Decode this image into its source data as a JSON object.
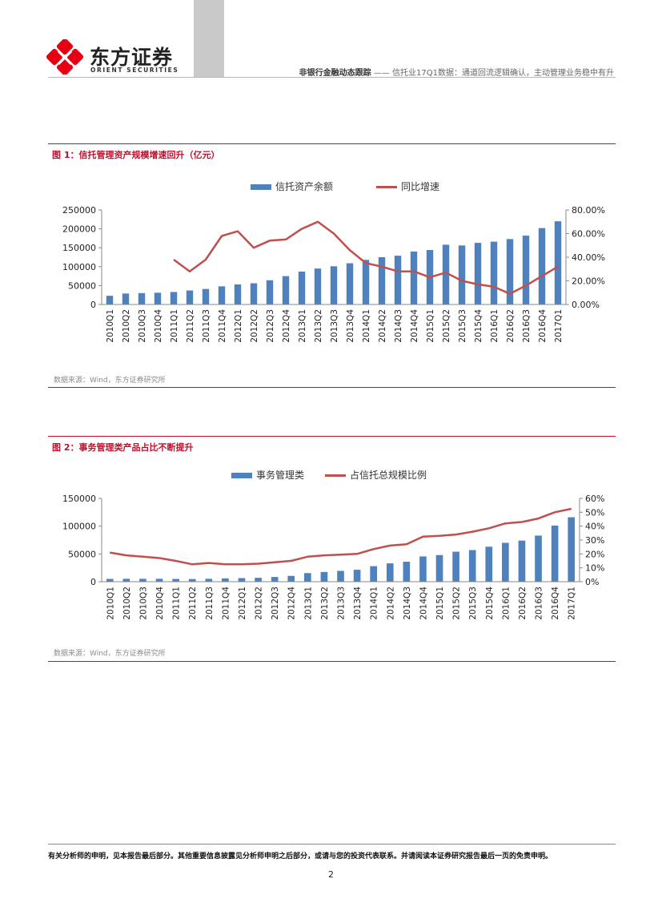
{
  "header": {
    "logo_cn": "东方证券",
    "logo_en": "ORIENT SECURITIES",
    "section": "非银行金融动态跟踪",
    "separator": "——",
    "subtitle": "信托业17Q1数据：通道回流逻辑确认，主动管理业务稳中有升"
  },
  "figures": [
    {
      "title": "图 1：信托管理资产规模增速回升（亿元）",
      "source": "数据来源：Wind，东方证券研究所"
    },
    {
      "title": "图 2：事务管理类产品占比不断提升",
      "source": "数据来源：Wind，东方证券研究所"
    }
  ],
  "footer": {
    "disclaimer": "有关分析师的申明，见本报告最后部分。其他重要信息披露见分析师申明之后部分，或请与您的投资代表联系。并请阅读本证券研究报告最后一页的免责申明。",
    "page": "2"
  },
  "colors": {
    "bar": "#4f81bd",
    "line": "#c0504d",
    "accent": "#c0102e"
  },
  "chart_data": [
    {
      "type": "bar",
      "categories": [
        "2010Q1",
        "2010Q2",
        "2010Q3",
        "2010Q4",
        "2011Q1",
        "2011Q2",
        "2011Q3",
        "2011Q4",
        "2012Q1",
        "2012Q2",
        "2012Q3",
        "2012Q4",
        "2013Q1",
        "2013Q2",
        "2013Q3",
        "2013Q4",
        "2014Q1",
        "2014Q2",
        "2014Q3",
        "2014Q4",
        "2015Q1",
        "2015Q2",
        "2015Q3",
        "2015Q4",
        "2016Q1",
        "2016Q2",
        "2016Q3",
        "2016Q4",
        "2017Q1"
      ],
      "series": [
        {
          "name": "信托资产余额",
          "type": "bar",
          "axis": "left",
          "values": [
            23000,
            29000,
            30000,
            31000,
            33000,
            37000,
            41000,
            48000,
            53000,
            56000,
            64000,
            75000,
            87000,
            95000,
            101000,
            109000,
            118000,
            125000,
            129000,
            140000,
            144000,
            158000,
            156000,
            163000,
            166000,
            173000,
            182000,
            202000,
            220000
          ]
        },
        {
          "name": "同比增速",
          "type": "line",
          "axis": "right",
          "values": [
            null,
            null,
            null,
            null,
            0.38,
            0.28,
            0.38,
            0.58,
            0.62,
            0.48,
            0.54,
            0.55,
            0.64,
            0.7,
            0.6,
            0.46,
            0.35,
            0.32,
            0.28,
            0.28,
            0.23,
            0.27,
            0.2,
            0.17,
            0.15,
            0.09,
            0.16,
            0.24,
            0.32
          ]
        }
      ],
      "yticks_left": [
        "0",
        "50000",
        "100000",
        "150000",
        "200000",
        "250000"
      ],
      "ylim_left": [
        0,
        250000
      ],
      "yticks_right": [
        "0.00%",
        "20.00%",
        "40.00%",
        "60.00%",
        "80.00%"
      ],
      "ylim_right": [
        0,
        0.8
      ],
      "legend": "top-center",
      "grid": false
    },
    {
      "type": "bar",
      "categories": [
        "2010Q1",
        "2010Q2",
        "2010Q3",
        "2010Q4",
        "2011Q1",
        "2011Q2",
        "2011Q3",
        "2011Q4",
        "2012Q1",
        "2012Q2",
        "2012Q3",
        "2012Q4",
        "2013Q1",
        "2013Q2",
        "2013Q3",
        "2013Q4",
        "2014Q1",
        "2014Q2",
        "2014Q3",
        "2014Q4",
        "2015Q1",
        "2015Q2",
        "2015Q3",
        "2015Q4",
        "2016Q1",
        "2016Q2",
        "2016Q3",
        "2016Q4",
        "2017Q1"
      ],
      "series": [
        {
          "name": "事务管理类",
          "type": "bar",
          "axis": "left",
          "values": [
            5000,
            5200,
            5200,
            5200,
            5000,
            4800,
            5200,
            6000,
            6500,
            7000,
            8500,
            10500,
            15500,
            17500,
            19500,
            21500,
            28000,
            33000,
            36000,
            45500,
            48000,
            54000,
            57000,
            63000,
            70000,
            74000,
            83000,
            101000,
            116000
          ]
        },
        {
          "name": "占信托总规模比例",
          "type": "line",
          "axis": "right",
          "values": [
            0.21,
            0.19,
            0.18,
            0.17,
            0.15,
            0.125,
            0.135,
            0.125,
            0.125,
            0.13,
            0.14,
            0.15,
            0.18,
            0.19,
            0.195,
            0.2,
            0.235,
            0.26,
            0.27,
            0.325,
            0.33,
            0.34,
            0.36,
            0.385,
            0.42,
            0.43,
            0.455,
            0.5,
            0.525
          ]
        }
      ],
      "yticks_left": [
        "0",
        "50000",
        "100000",
        "150000"
      ],
      "ylim_left": [
        0,
        150000
      ],
      "yticks_right": [
        "0%",
        "10%",
        "20%",
        "30%",
        "40%",
        "50%",
        "60%"
      ],
      "ylim_right": [
        0,
        0.6
      ],
      "legend": "top-center",
      "grid": false
    }
  ]
}
